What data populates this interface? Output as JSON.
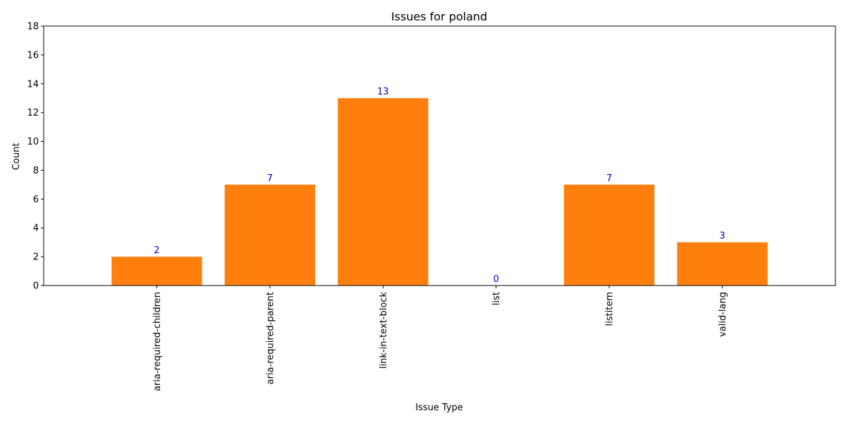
{
  "chart_data": {
    "type": "bar",
    "title": "Issues for poland",
    "xlabel": "Issue Type",
    "ylabel": "Count",
    "categories": [
      "aria-required-children",
      "aria-required-parent",
      "link-in-text-block",
      "list",
      "listitem",
      "valid-lang"
    ],
    "values": [
      2,
      7,
      13,
      0,
      7,
      3
    ],
    "ylim": [
      0,
      18
    ],
    "yticks": [
      0,
      2,
      4,
      6,
      8,
      10,
      12,
      14,
      16,
      18
    ],
    "x_tick_rotation": "vertical",
    "grid": false,
    "legend": "none",
    "colors": {
      "bar": "#ff7f0e",
      "data_label": "#0000cc",
      "axis": "#000000"
    }
  }
}
